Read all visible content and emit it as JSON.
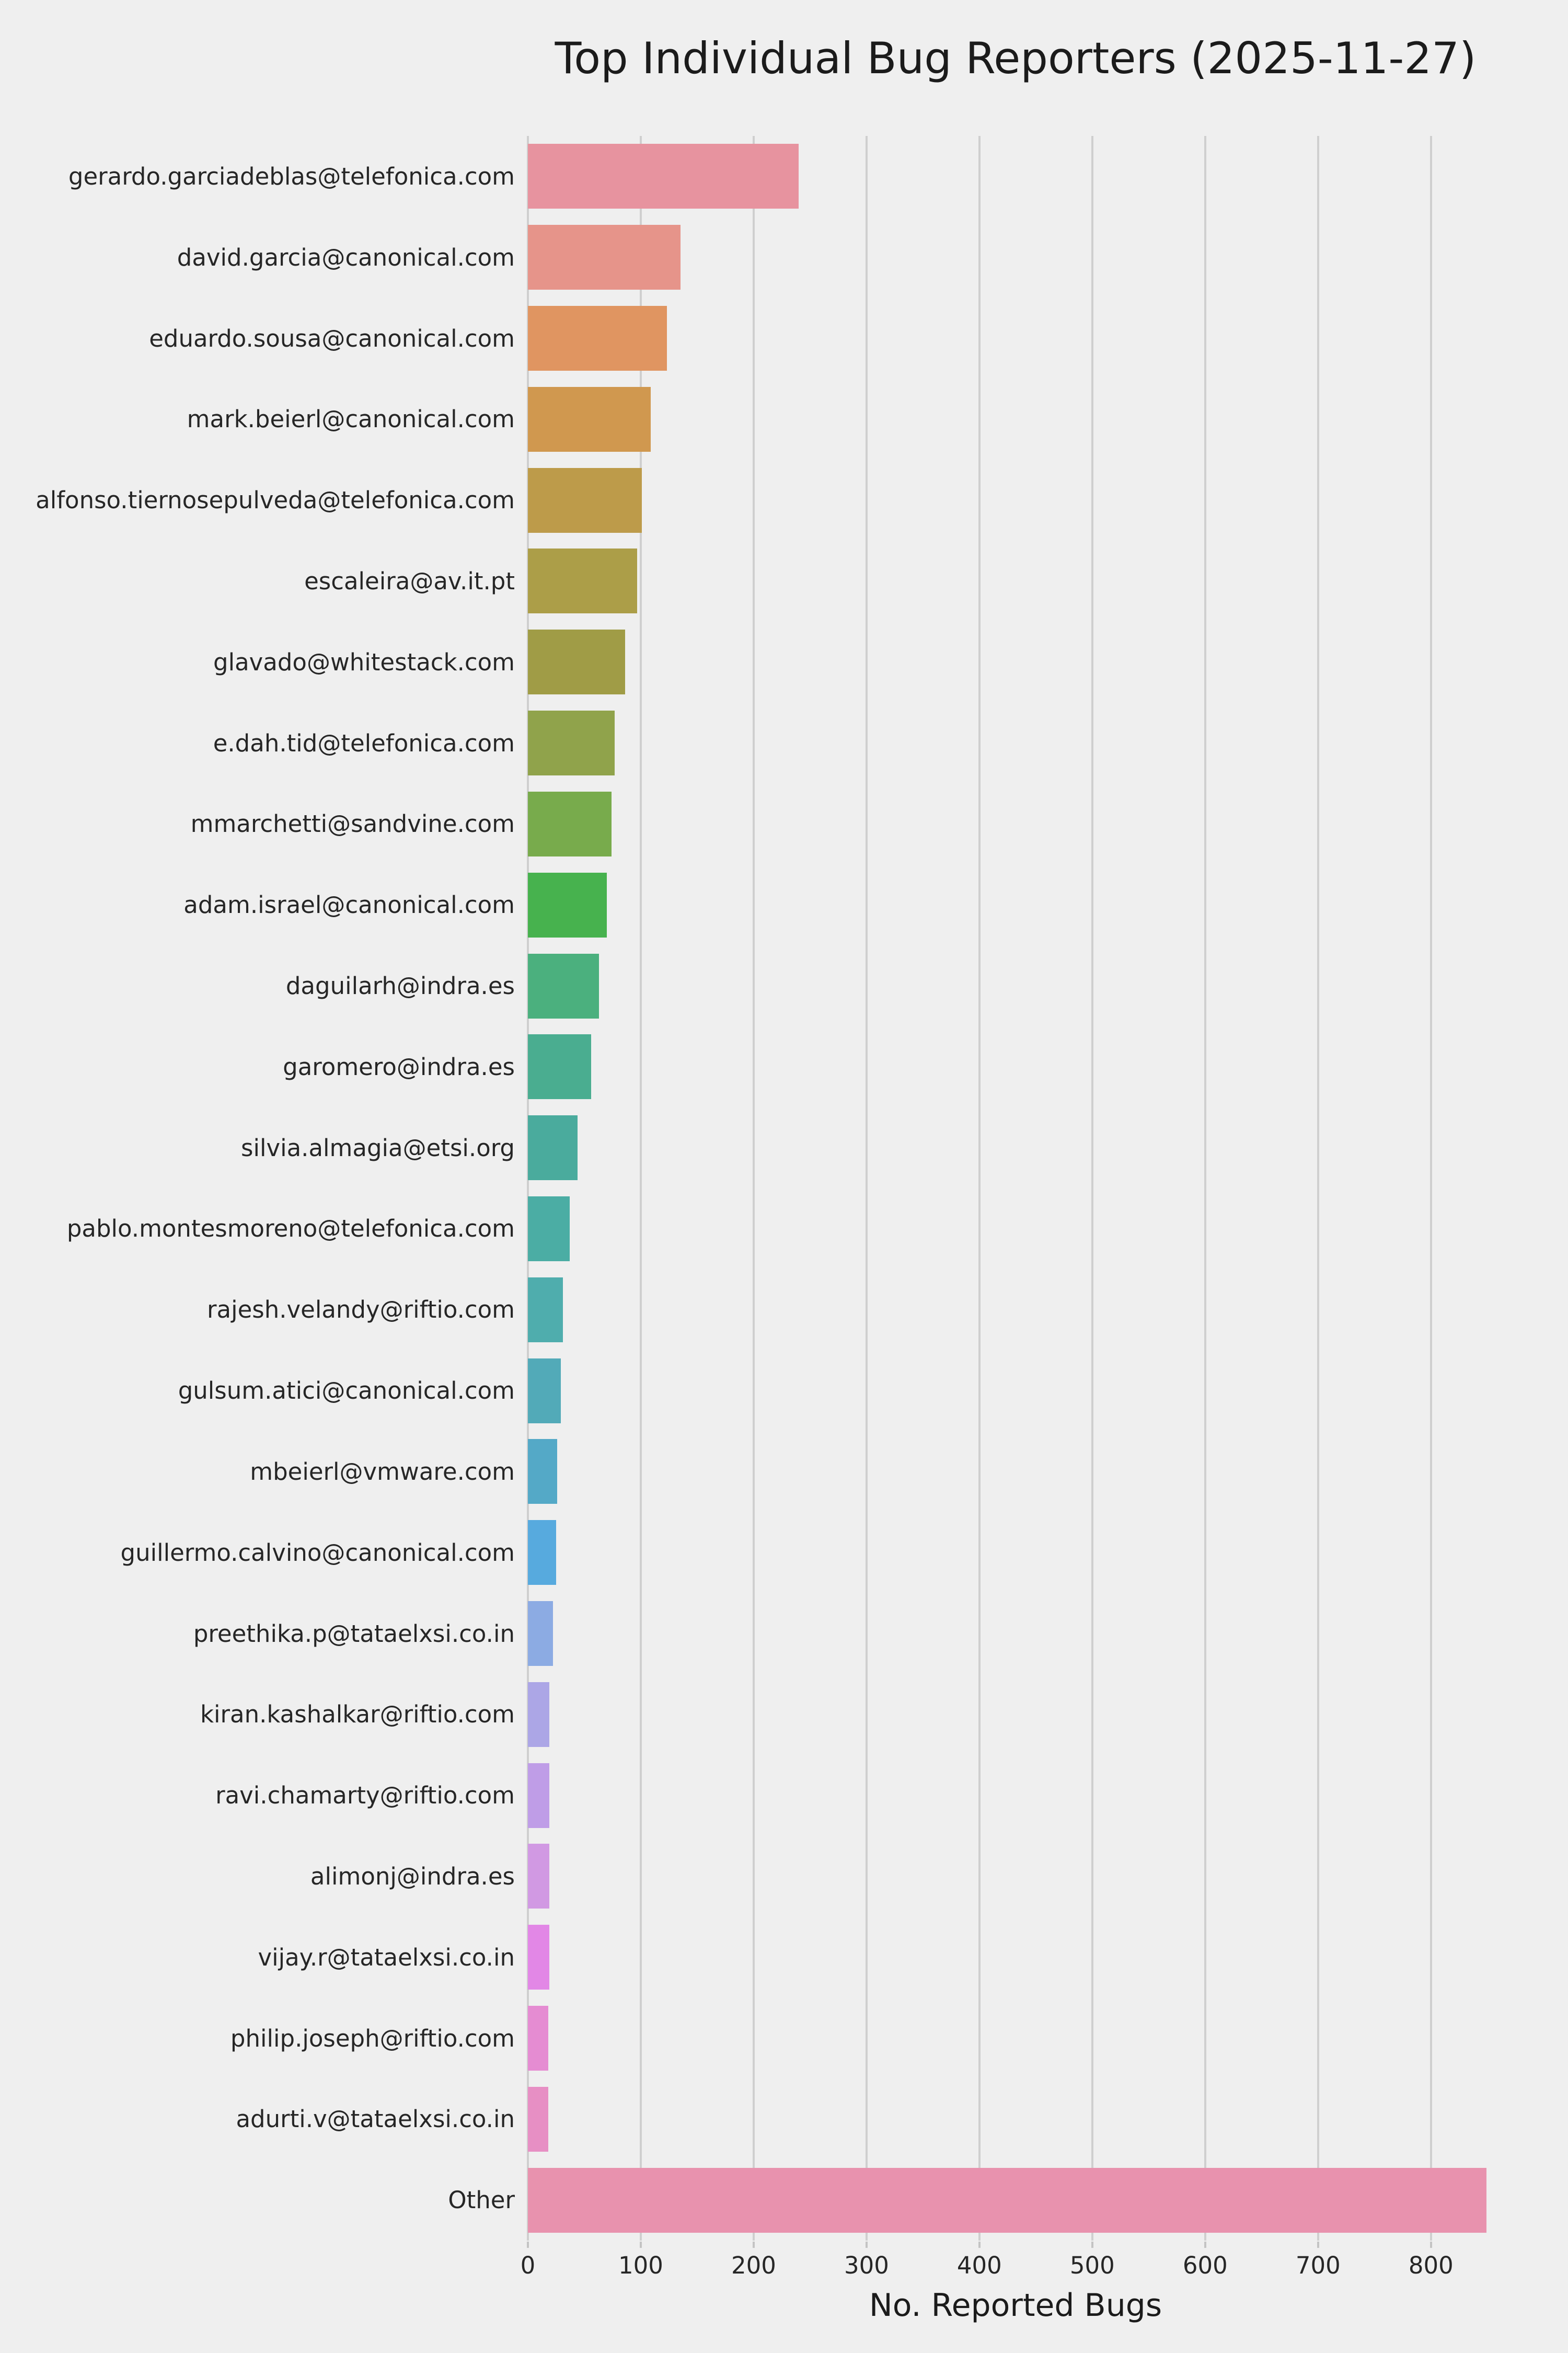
{
  "title": "Top Individual Bug Reporters (2025-11-27)",
  "chart_data": {
    "type": "bar",
    "orientation": "horizontal",
    "title": "Top Individual Bug Reporters (2025-11-27)",
    "xlabel": "No. Reported Bugs",
    "ylabel": "",
    "xlim": [
      0,
      864
    ],
    "x_ticks": [
      0,
      100,
      200,
      300,
      400,
      500,
      600,
      700,
      800
    ],
    "grid": true,
    "legend": false,
    "categories": [
      "gerardo.garciadeblas@telefonica.com",
      "david.garcia@canonical.com",
      "eduardo.sousa@canonical.com",
      "mark.beierl@canonical.com",
      "alfonso.tiernosepulveda@telefonica.com",
      "escaleira@av.it.pt",
      "glavado@whitestack.com",
      "e.dah.tid@telefonica.com",
      "mmarchetti@sandvine.com",
      "adam.israel@canonical.com",
      "daguilarh@indra.es",
      "garomero@indra.es",
      "silvia.almagia@etsi.org",
      "pablo.montesmoreno@telefonica.com",
      "rajesh.velandy@riftio.com",
      "gulsum.atici@canonical.com",
      "mbeierl@vmware.com",
      "guillermo.calvino@canonical.com",
      "preethika.p@tataelxsi.co.in",
      "kiran.kashalkar@riftio.com",
      "ravi.chamarty@riftio.com",
      "alimonj@indra.es",
      "vijay.r@tataelxsi.co.in",
      "philip.joseph@riftio.com",
      "adurti.v@tataelxsi.co.in",
      "Other"
    ],
    "values": [
      240,
      135,
      123,
      109,
      101,
      97,
      86,
      77,
      74,
      70,
      63,
      56,
      44,
      37,
      31,
      29,
      26,
      25,
      22,
      19,
      19,
      19,
      19,
      18,
      18,
      849
    ],
    "bar_colors": [
      "#e7939f",
      "#e6948a",
      "#e09561",
      "#d0984f",
      "#bd9b4a",
      "#ac9e48",
      "#a09c46",
      "#90a34b",
      "#78ab4c",
      "#47b24e",
      "#4bb07e",
      "#4aad90",
      "#4aab9d",
      "#4bada4",
      "#4fadad",
      "#52aab8",
      "#54a9c7",
      "#57aade",
      "#8cabe3",
      "#aca6e6",
      "#bf9de7",
      "#d199e3",
      "#e287e6",
      "#e58cd2",
      "#e78fc4",
      "#e892ae"
    ],
    "colors": {
      "background": "#efefef",
      "gridline": "#cfcfcf",
      "tick_mark": "#c4c4c4",
      "tick_text": "#262626",
      "label_text": "#262626",
      "title_text": "#1b1b1b"
    }
  }
}
